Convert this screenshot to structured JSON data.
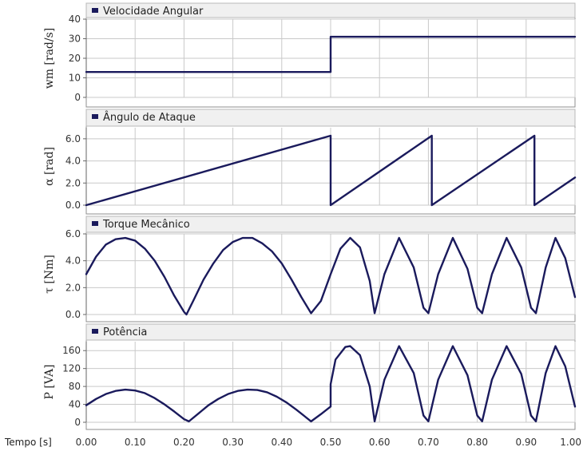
{
  "chart_data": [
    {
      "type": "line",
      "title": "",
      "legend": "Velocidade Angular",
      "ylabel": "wm [rad/s]",
      "xlim": [
        0,
        1
      ],
      "ylim": [
        0,
        40
      ],
      "yticks": [
        0,
        10,
        20,
        30,
        40
      ],
      "ytick_labels": [
        "0",
        "10",
        "20",
        "30",
        "40"
      ],
      "grid": true,
      "series": [
        {
          "color": "#1a1a5c",
          "x": [
            0,
            0.5,
            0.5,
            1.0
          ],
          "y": [
            13,
            13,
            31,
            31
          ]
        }
      ]
    },
    {
      "type": "line",
      "title": "",
      "legend": "Ângulo de Ataque",
      "ylabel": "α [rad]",
      "xlim": [
        0,
        1
      ],
      "ylim": [
        0,
        7
      ],
      "yticks": [
        0,
        2,
        4,
        6
      ],
      "ytick_labels": [
        "0.0",
        "2.0",
        "4.0",
        "6.0"
      ],
      "grid": true,
      "series": [
        {
          "color": "#1a1a5c",
          "x": [
            0.0,
            0.5,
            0.5,
            0.707,
            0.707,
            0.917,
            0.917,
            1.0
          ],
          "y": [
            0.0,
            6.28,
            0.0,
            6.28,
            0.0,
            6.28,
            0.0,
            2.5
          ]
        }
      ]
    },
    {
      "type": "line",
      "title": "",
      "legend": "Torque Mecânico",
      "ylabel": "τ [Nm]",
      "xlim": [
        0,
        1
      ],
      "ylim": [
        0,
        6
      ],
      "yticks": [
        0,
        2,
        4,
        6
      ],
      "ytick_labels": [
        "0.0",
        "2.0",
        "4.0",
        "6.0"
      ],
      "grid": true,
      "series": [
        {
          "color": "#1a1a5c",
          "x": [
            0.0,
            0.02,
            0.04,
            0.06,
            0.08,
            0.1,
            0.12,
            0.14,
            0.16,
            0.18,
            0.2,
            0.205,
            0.22,
            0.24,
            0.26,
            0.28,
            0.3,
            0.32,
            0.34,
            0.36,
            0.38,
            0.4,
            0.42,
            0.44,
            0.46,
            0.48,
            0.5,
            0.5,
            0.52,
            0.54,
            0.56,
            0.58,
            0.59,
            0.61,
            0.64,
            0.67,
            0.69,
            0.7,
            0.72,
            0.75,
            0.78,
            0.8,
            0.81,
            0.83,
            0.86,
            0.89,
            0.91,
            0.92,
            0.94,
            0.96,
            0.98,
            1.0
          ],
          "y": [
            3.0,
            4.3,
            5.2,
            5.6,
            5.7,
            5.5,
            4.9,
            4.0,
            2.8,
            1.4,
            0.2,
            0.0,
            1.1,
            2.6,
            3.8,
            4.8,
            5.4,
            5.7,
            5.7,
            5.3,
            4.7,
            3.8,
            2.6,
            1.3,
            0.1,
            1.0,
            3.0,
            3.0,
            4.9,
            5.7,
            5.0,
            2.5,
            0.1,
            3.0,
            5.7,
            3.5,
            0.5,
            0.1,
            3.0,
            5.7,
            3.4,
            0.5,
            0.1,
            3.0,
            5.7,
            3.5,
            0.5,
            0.1,
            3.5,
            5.7,
            4.2,
            1.3
          ]
        }
      ]
    },
    {
      "type": "line",
      "title": "",
      "legend": "Potência",
      "ylabel": "P [VA]",
      "xlim": [
        0,
        1
      ],
      "ylim": [
        0,
        180
      ],
      "yticks": [
        0,
        40,
        80,
        120,
        160
      ],
      "ytick_labels": [
        "0",
        "40",
        "80",
        "120",
        "160"
      ],
      "grid": true,
      "series": [
        {
          "color": "#1a1a5c",
          "x": [
            0.0,
            0.02,
            0.04,
            0.06,
            0.08,
            0.1,
            0.12,
            0.14,
            0.16,
            0.18,
            0.2,
            0.21,
            0.23,
            0.25,
            0.27,
            0.29,
            0.31,
            0.33,
            0.35,
            0.37,
            0.39,
            0.41,
            0.43,
            0.46,
            0.48,
            0.5,
            0.5,
            0.51,
            0.53,
            0.54,
            0.56,
            0.58,
            0.59,
            0.61,
            0.64,
            0.67,
            0.69,
            0.7,
            0.72,
            0.75,
            0.78,
            0.8,
            0.81,
            0.83,
            0.86,
            0.89,
            0.91,
            0.92,
            0.94,
            0.96,
            0.98,
            1.0
          ],
          "y": [
            38,
            52,
            63,
            70,
            73,
            71,
            65,
            54,
            40,
            24,
            7,
            2,
            20,
            38,
            52,
            63,
            70,
            73,
            72,
            67,
            57,
            44,
            28,
            2,
            18,
            35,
            85,
            140,
            168,
            170,
            150,
            80,
            2,
            95,
            170,
            110,
            15,
            2,
            95,
            170,
            105,
            15,
            2,
            95,
            170,
            108,
            15,
            2,
            110,
            170,
            125,
            35
          ]
        }
      ]
    }
  ],
  "x_axis": {
    "label": "Tempo [s]",
    "ticks": [
      0.0,
      0.1,
      0.2,
      0.3,
      0.4,
      0.5,
      0.6,
      0.7,
      0.8,
      0.9,
      1.0
    ],
    "tick_labels": [
      "0.00",
      "0.10",
      "0.20",
      "0.30",
      "0.40",
      "0.50",
      "0.60",
      "0.70",
      "0.80",
      "0.90",
      "1.00"
    ]
  }
}
